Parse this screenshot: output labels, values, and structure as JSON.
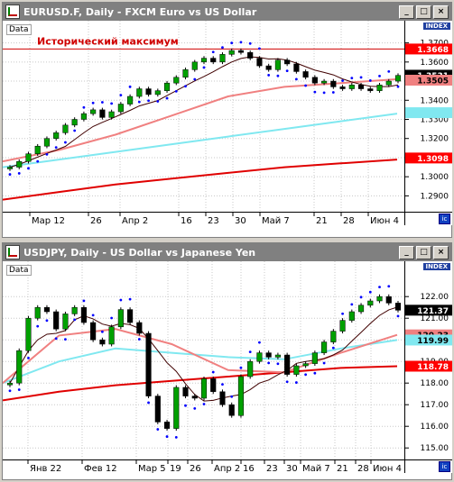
{
  "windows": [
    {
      "title": "EURUSD.F, Daily - FXCM Euro vs US Dollar",
      "data_label": "Data",
      "index_label": "INDEX",
      "annotation": "Исторический максимум",
      "y_ticks": [
        "1.3700",
        "1.3600",
        "1.3500",
        "1.3400",
        "1.3300",
        "1.3200",
        "1.3100",
        "1.3000",
        "1.2900"
      ],
      "x_ticks": [
        "Мар 12",
        "26",
        "Апр 2",
        "16",
        "23",
        "30",
        "Май 7",
        "21",
        "28",
        "Июн 4"
      ],
      "badges": [
        {
          "text": "1.3668",
          "value": 1.3668,
          "bg": "#ff0000",
          "fg": "#ffffff"
        },
        {
          "text": "1.3531",
          "value": 1.3531,
          "bg": "#000000",
          "fg": "#ffffff"
        },
        {
          "text": "1.3505",
          "value": 1.3505,
          "bg": "#f08080",
          "fg": "#000000"
        },
        {
          "text": "",
          "value": 1.3335,
          "bg": "#80e8f0",
          "fg": "#000000"
        },
        {
          "text": "1.3098",
          "value": 1.3098,
          "bg": "#ff0000",
          "fg": "#ffffff"
        }
      ],
      "colors": {
        "up": "#00a000",
        "down": "#000000",
        "sar": "#0000ff",
        "ma_short": "#400000",
        "ma_mid": "#f08080",
        "ma_long": "#80e8f0",
        "ma_200": "#e00000",
        "resistance": "#d00000"
      }
    },
    {
      "title": "USDJPY, Daily - US Dollar vs Japanese Yen",
      "data_label": "Data",
      "index_label": "INDEX",
      "y_ticks": [
        "122.00",
        "121.00",
        "120.00",
        "119.00",
        "118.00",
        "117.00",
        "116.00",
        "115.00"
      ],
      "x_ticks": [
        "Янв 22",
        "Фев 12",
        "Мар 5",
        "19",
        "26",
        "Апр 2",
        "16",
        "23",
        "30",
        "Май 7",
        "21",
        "28",
        "Июн 4"
      ],
      "badges": [
        {
          "text": "121.37",
          "value": 121.37,
          "bg": "#000000",
          "fg": "#ffffff"
        },
        {
          "text": "120.23",
          "value": 120.23,
          "bg": "#f08080",
          "fg": "#000000"
        },
        {
          "text": "119.99",
          "value": 119.99,
          "bg": "#80e8f0",
          "fg": "#000000"
        },
        {
          "text": "118.78",
          "value": 118.78,
          "bg": "#ff0000",
          "fg": "#ffffff"
        }
      ],
      "colors": {
        "up": "#00a000",
        "down": "#000000",
        "sar": "#0000ff",
        "ma_short": "#400000",
        "ma_mid": "#f08080",
        "ma_long": "#80e8f0",
        "ma_200": "#e00000"
      }
    }
  ],
  "chart_data": [
    {
      "type": "candlestick",
      "title": "EURUSD.F, Daily - FXCM Euro vs US Dollar",
      "ylim": [
        1.285,
        1.375
      ],
      "resistance_level": 1.3668,
      "close_points": [
        1.305,
        1.308,
        1.312,
        1.316,
        1.32,
        1.323,
        1.327,
        1.33,
        1.333,
        1.335,
        1.331,
        1.334,
        1.338,
        1.342,
        1.346,
        1.343,
        1.345,
        1.349,
        1.352,
        1.356,
        1.36,
        1.362,
        1.36,
        1.364,
        1.366,
        1.365,
        1.362,
        1.358,
        1.356,
        1.361,
        1.359,
        1.355,
        1.352,
        1.349,
        1.35,
        1.347,
        1.346,
        1.348,
        1.346,
        1.345,
        1.348,
        1.35,
        1.353
      ],
      "ma_200": [
        1.288,
        1.292,
        1.296,
        1.299,
        1.302,
        1.305,
        1.307,
        1.309
      ],
      "ma_long": [
        1.305,
        1.309,
        1.313,
        1.317,
        1.321,
        1.325,
        1.329,
        1.333
      ],
      "ma_mid": [
        1.308,
        1.314,
        1.322,
        1.332,
        1.342,
        1.347,
        1.349,
        1.351
      ],
      "last_close": 1.3531
    },
    {
      "type": "candlestick",
      "title": "USDJPY, Daily - US Dollar vs Japanese Yen",
      "ylim": [
        114.8,
        123.3
      ],
      "close_points": [
        118.0,
        119.5,
        121.0,
        121.5,
        121.3,
        120.5,
        121.2,
        121.5,
        120.8,
        120.0,
        119.8,
        120.6,
        121.4,
        120.8,
        120.3,
        117.4,
        116.2,
        115.9,
        117.8,
        117.4,
        117.3,
        118.2,
        117.6,
        117.0,
        116.5,
        118.3,
        119.0,
        119.4,
        119.2,
        119.3,
        118.4,
        118.8,
        118.9,
        119.4,
        119.9,
        120.4,
        120.9,
        121.3,
        121.6,
        121.8,
        122.0,
        121.7,
        121.37
      ],
      "ma_200": [
        117.2,
        117.6,
        117.9,
        118.1,
        118.3,
        118.5,
        118.7,
        118.78
      ],
      "ma_long": [
        118.0,
        119.0,
        119.6,
        119.4,
        119.2,
        119.1,
        119.6,
        119.99
      ],
      "ma_mid": [
        118.0,
        120.2,
        120.5,
        119.8,
        118.6,
        118.5,
        119.4,
        120.23
      ],
      "last_close": 121.37
    }
  ]
}
